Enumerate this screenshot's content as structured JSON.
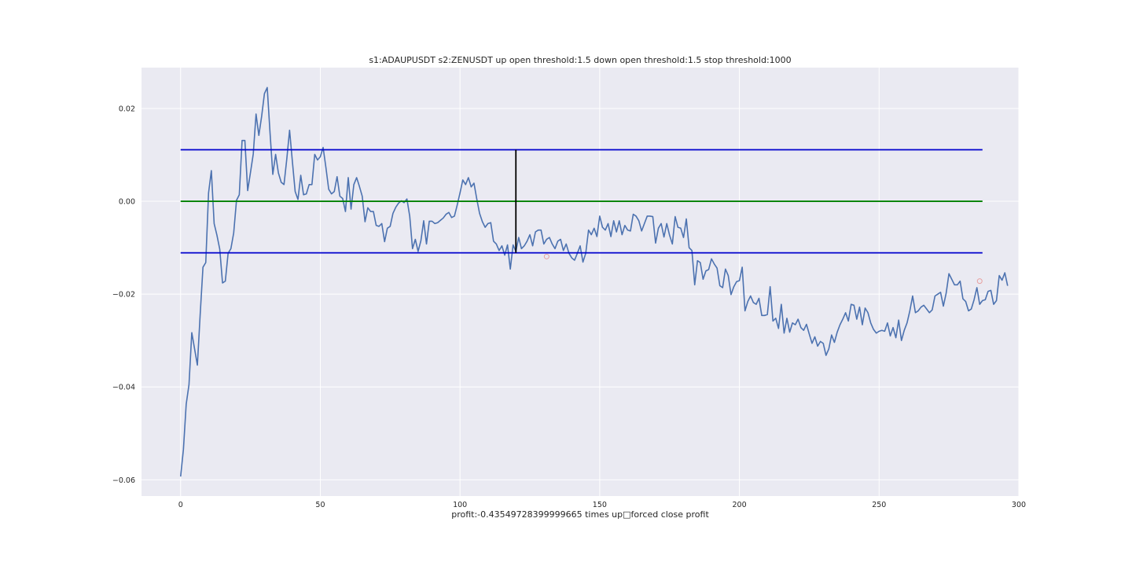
{
  "chart_data": {
    "type": "line",
    "title": "s1:ADAUPUSDT s2:ZENUSDT up open threshold:1.5 down open threshold:1.5 stop threshold:1000",
    "xlabel": "profit:-0.43549728399999665 times up□forced close profit",
    "ylabel": "",
    "xlim": [
      -14,
      300
    ],
    "ylim": [
      -0.0635,
      0.0288
    ],
    "xticks": [
      0,
      50,
      100,
      150,
      200,
      250,
      300
    ],
    "xtick_labels": [
      "0",
      "50",
      "100",
      "150",
      "200",
      "250",
      "300"
    ],
    "yticks": [
      -0.06,
      -0.04,
      -0.02,
      0.0,
      0.02
    ],
    "ytick_labels": [
      "−0.06",
      "−0.04",
      "−0.02",
      "0.00",
      "0.02"
    ],
    "grid": true,
    "series": [
      {
        "color": "#4c72b0",
        "x_start": 0,
        "values": [
          -0.0593,
          -0.0535,
          -0.0437,
          -0.0395,
          -0.0283,
          -0.0318,
          -0.0353,
          -0.0244,
          -0.0142,
          -0.0132,
          0.0018,
          0.0066,
          -0.0048,
          -0.0073,
          -0.0103,
          -0.0176,
          -0.0172,
          -0.0112,
          -0.0102,
          -0.0068,
          0.0002,
          0.0014,
          0.0131,
          0.0131,
          0.0023,
          0.0062,
          0.0102,
          0.0188,
          0.0142,
          0.0183,
          0.0232,
          0.0245,
          0.0148,
          0.0058,
          0.0101,
          0.0061,
          0.0041,
          0.0036,
          0.0091,
          0.0153,
          0.0086,
          0.0021,
          0.0004,
          0.0056,
          0.0014,
          0.0016,
          0.0036,
          0.0036,
          0.0101,
          0.0089,
          0.0096,
          0.0116,
          0.0073,
          0.0026,
          0.0016,
          0.0021,
          0.0053,
          0.0011,
          0.0006,
          -0.0022,
          0.0051,
          -0.0017,
          0.0036,
          0.0051,
          0.0032,
          0.0011,
          -0.0044,
          -0.0014,
          -0.0022,
          -0.0022,
          -0.0052,
          -0.0054,
          -0.0048,
          -0.0087,
          -0.0058,
          -0.0054,
          -0.0026,
          -0.0013,
          -0.0004,
          0.0001,
          -0.0003,
          0.0005,
          -0.0032,
          -0.0102,
          -0.0082,
          -0.0108,
          -0.0085,
          -0.0042,
          -0.0092,
          -0.0043,
          -0.0043,
          -0.0048,
          -0.0046,
          -0.0041,
          -0.0036,
          -0.0028,
          -0.0024,
          -0.0035,
          -0.0032,
          -0.0008,
          0.0018,
          0.0046,
          0.0036,
          0.0051,
          0.0031,
          0.0039,
          0.0005,
          -0.0026,
          -0.0044,
          -0.0056,
          -0.0048,
          -0.0046,
          -0.0086,
          -0.0092,
          -0.0106,
          -0.0096,
          -0.0116,
          -0.0094,
          -0.0146,
          -0.0094,
          -0.0108,
          -0.0078,
          -0.0102,
          -0.0096,
          -0.0086,
          -0.0072,
          -0.0096,
          -0.0066,
          -0.0062,
          -0.0062,
          -0.0092,
          -0.0082,
          -0.0078,
          -0.0092,
          -0.0102,
          -0.0086,
          -0.0082,
          -0.0106,
          -0.0092,
          -0.0112,
          -0.0122,
          -0.0127,
          -0.0112,
          -0.0096,
          -0.0131,
          -0.0112,
          -0.0062,
          -0.0072,
          -0.0058,
          -0.0076,
          -0.0032,
          -0.0056,
          -0.0062,
          -0.0048,
          -0.0076,
          -0.0042,
          -0.0066,
          -0.0042,
          -0.0072,
          -0.0052,
          -0.0062,
          -0.0064,
          -0.0028,
          -0.0032,
          -0.0042,
          -0.0064,
          -0.0048,
          -0.0032,
          -0.0032,
          -0.0033,
          -0.009,
          -0.0058,
          -0.0048,
          -0.0077,
          -0.0048,
          -0.0073,
          -0.0092,
          -0.0033,
          -0.0056,
          -0.0058,
          -0.0078,
          -0.0038,
          -0.01,
          -0.0106,
          -0.018,
          -0.0128,
          -0.0132,
          -0.0168,
          -0.015,
          -0.0147,
          -0.0124,
          -0.0135,
          -0.0144,
          -0.0182,
          -0.0186,
          -0.0146,
          -0.016,
          -0.0201,
          -0.0184,
          -0.0173,
          -0.0171,
          -0.0142,
          -0.0236,
          -0.0216,
          -0.0204,
          -0.0218,
          -0.0222,
          -0.0209,
          -0.0246,
          -0.0246,
          -0.0244,
          -0.0184,
          -0.0258,
          -0.0252,
          -0.0274,
          -0.0222,
          -0.0284,
          -0.0252,
          -0.0282,
          -0.0262,
          -0.0266,
          -0.0254,
          -0.0272,
          -0.0278,
          -0.0265,
          -0.0286,
          -0.0306,
          -0.0292,
          -0.0312,
          -0.0302,
          -0.0306,
          -0.0332,
          -0.0318,
          -0.0288,
          -0.0304,
          -0.0282,
          -0.0266,
          -0.0254,
          -0.024,
          -0.0258,
          -0.0222,
          -0.0224,
          -0.0254,
          -0.0228,
          -0.0266,
          -0.023,
          -0.024,
          -0.0262,
          -0.0276,
          -0.0284,
          -0.028,
          -0.0278,
          -0.028,
          -0.0262,
          -0.029,
          -0.0272,
          -0.0294,
          -0.0256,
          -0.03,
          -0.0278,
          -0.0262,
          -0.0236,
          -0.0204,
          -0.024,
          -0.0236,
          -0.0228,
          -0.0224,
          -0.0232,
          -0.024,
          -0.0234,
          -0.0204,
          -0.02,
          -0.0196,
          -0.0226,
          -0.0198,
          -0.0156,
          -0.0168,
          -0.018,
          -0.018,
          -0.0172,
          -0.021,
          -0.0216,
          -0.0236,
          -0.0232,
          -0.0212,
          -0.0186,
          -0.0222,
          -0.0214,
          -0.0212,
          -0.0194,
          -0.0192,
          -0.0222,
          -0.0214,
          -0.016,
          -0.017,
          -0.0154,
          -0.0182
        ]
      },
      {
        "color": "#0000cd",
        "x": [
          0,
          287
        ],
        "y": [
          0.0111,
          0.0111
        ]
      },
      {
        "color": "#008000",
        "x": [
          0,
          287
        ],
        "y": [
          0.0,
          0.0
        ]
      },
      {
        "color": "#0000cd",
        "x": [
          0,
          287
        ],
        "y": [
          -0.0111,
          -0.0111
        ]
      },
      {
        "color": "#000000",
        "x": [
          120,
          120
        ],
        "y": [
          -0.0111,
          0.0111
        ]
      }
    ],
    "markers": [
      {
        "color": "#e8a0a0",
        "x": 131,
        "y": -0.0119
      },
      {
        "color": "#e8a0a0",
        "x": 286,
        "y": -0.0172
      }
    ]
  }
}
